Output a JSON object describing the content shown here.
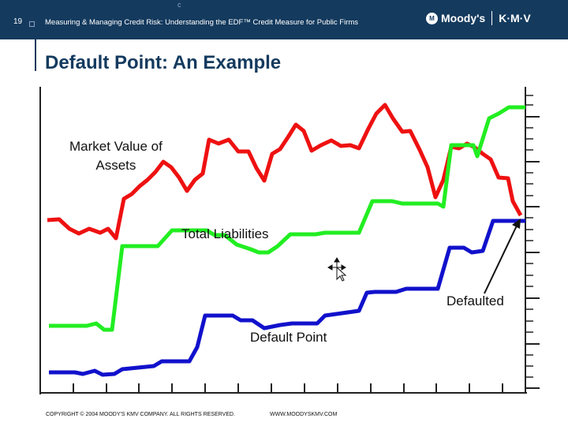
{
  "header": {
    "slide_number": "19",
    "c_mark": "c",
    "title": "Measuring & Managing Credit Risk: Understanding the EDF™ Credit Measure for Public Firms",
    "logo_badge": "M",
    "logo_left": "Moody's",
    "logo_right": "K·M·V"
  },
  "slide": {
    "title": "Default Point: An Example"
  },
  "chart_labels": {
    "market_value_line1": "Market Value of",
    "market_value_line2": "Assets",
    "total_liabilities": "Total Liabilities",
    "defaulted": "Defaulted",
    "default_point": "Default Point"
  },
  "colors": {
    "header_bg": "#143a5e",
    "market_value": "#ee1111",
    "total_liabilities": "#22ee22",
    "default_point": "#1111cc"
  },
  "footer": {
    "copyright": "COPYRIGHT © 2004 MOODY'S KMV COMPANY. ALL RIGHTS RESERVED.",
    "url": "WWW.MOODYSKMV.COM"
  }
}
